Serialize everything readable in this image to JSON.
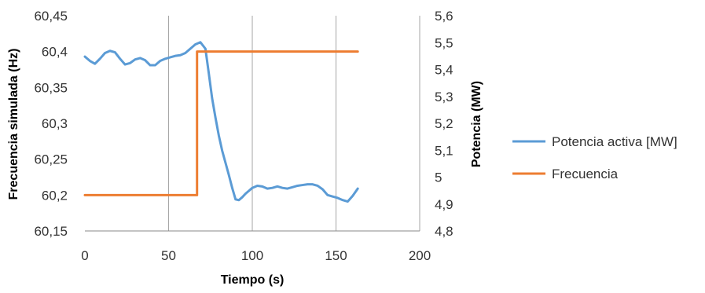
{
  "chart_data": {
    "type": "line",
    "xlabel": "Tiempo (s)",
    "ylabel_left": "Frecuencia simulada (Hz)",
    "ylabel_right": "Potencia (MW)",
    "xlim": [
      0,
      200
    ],
    "xticks": [
      0,
      50,
      100,
      150,
      200
    ],
    "xtick_labels": [
      "0",
      "50",
      "100",
      "150",
      "200"
    ],
    "ylim_left": [
      60.15,
      60.45
    ],
    "yticks_left": [
      60.15,
      60.2,
      60.25,
      60.3,
      60.35,
      60.4,
      60.45
    ],
    "ytick_labels_left": [
      "60,15",
      "60,2",
      "60,25",
      "60,3",
      "60,35",
      "60,4",
      "60,45"
    ],
    "ylim_right": [
      4.8,
      5.6
    ],
    "yticks_right": [
      4.8,
      4.9,
      5.0,
      5.1,
      5.2,
      5.3,
      5.4,
      5.5,
      5.6
    ],
    "ytick_labels_right": [
      "4,8",
      "4,9",
      "5",
      "5,1",
      "5,2",
      "5,3",
      "5,4",
      "5,5",
      "5,6"
    ],
    "grid": "vertical",
    "legend_position": "right",
    "series": [
      {
        "name": "Potencia activa [MW]",
        "axis": "left",
        "color": "#5b9bd5",
        "x": [
          0,
          3,
          6,
          9,
          12,
          15,
          18,
          21,
          24,
          27,
          30,
          33,
          36,
          39,
          42,
          45,
          48,
          51,
          54,
          57,
          60,
          63,
          66,
          69,
          72,
          74,
          76,
          78,
          80,
          82,
          84,
          86,
          88,
          90,
          92,
          94,
          96,
          98,
          100,
          103,
          106,
          109,
          112,
          115,
          118,
          121,
          124,
          127,
          130,
          133,
          136,
          139,
          142,
          145,
          148,
          151,
          154,
          157,
          160,
          163
        ],
        "y": [
          60.393,
          60.387,
          60.383,
          60.39,
          60.398,
          60.401,
          60.399,
          60.39,
          60.382,
          60.384,
          60.389,
          60.391,
          60.388,
          60.381,
          60.381,
          60.387,
          60.39,
          60.392,
          60.394,
          60.395,
          60.398,
          60.404,
          60.41,
          60.413,
          60.404,
          60.37,
          60.335,
          60.308,
          60.283,
          60.262,
          60.245,
          60.228,
          60.21,
          60.194,
          60.193,
          60.197,
          60.202,
          60.206,
          60.21,
          60.213,
          60.212,
          60.209,
          60.21,
          60.212,
          60.21,
          60.209,
          60.211,
          60.213,
          60.214,
          60.215,
          60.215,
          60.213,
          60.208,
          60.2,
          60.198,
          60.196,
          60.193,
          60.191,
          60.199,
          60.209
        ]
      },
      {
        "name": "Frecuencia",
        "axis": "left",
        "color": "#ed7d31",
        "x": [
          0,
          67,
          67,
          163
        ],
        "y": [
          60.2,
          60.2,
          60.4,
          60.4
        ]
      }
    ]
  }
}
